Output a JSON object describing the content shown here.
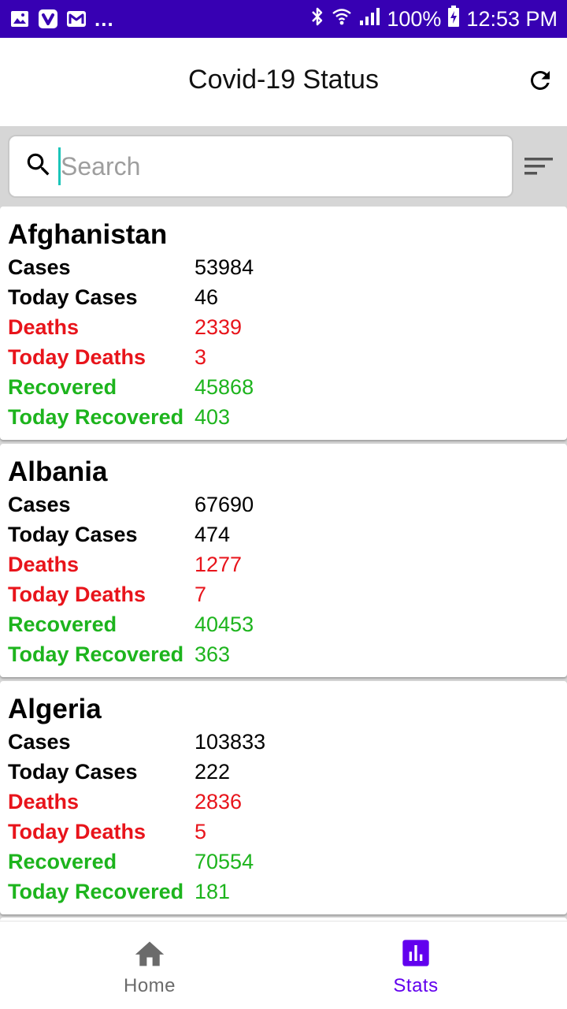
{
  "status_bar": {
    "battery": "100%",
    "time": "12:53 PM",
    "overflow": "..."
  },
  "app_bar": {
    "title": "Covid-19 Status",
    "refresh_icon": "refresh-icon"
  },
  "search": {
    "placeholder": "Search",
    "value": "",
    "sort_icon": "sort-icon"
  },
  "countries": [
    {
      "name": "Afghanistan",
      "stats": [
        {
          "label": "Cases",
          "value": "53984",
          "tone": "black"
        },
        {
          "label": "Today Cases",
          "value": "46",
          "tone": "black"
        },
        {
          "label": "Deaths",
          "value": "2339",
          "tone": "red"
        },
        {
          "label": "Today Deaths",
          "value": "3",
          "tone": "red"
        },
        {
          "label": "Recovered",
          "value": "45868",
          "tone": "green"
        },
        {
          "label": "Today Recovered",
          "value": "403",
          "tone": "green"
        }
      ]
    },
    {
      "name": "Albania",
      "stats": [
        {
          "label": "Cases",
          "value": "67690",
          "tone": "black"
        },
        {
          "label": "Today Cases",
          "value": "474",
          "tone": "black"
        },
        {
          "label": "Deaths",
          "value": "1277",
          "tone": "red"
        },
        {
          "label": "Today Deaths",
          "value": "7",
          "tone": "red"
        },
        {
          "label": "Recovered",
          "value": "40453",
          "tone": "green"
        },
        {
          "label": "Today Recovered",
          "value": "363",
          "tone": "green"
        }
      ]
    },
    {
      "name": "Algeria",
      "stats": [
        {
          "label": "Cases",
          "value": "103833",
          "tone": "black"
        },
        {
          "label": "Today Cases",
          "value": "222",
          "tone": "black"
        },
        {
          "label": "Deaths",
          "value": "2836",
          "tone": "red"
        },
        {
          "label": "Today Deaths",
          "value": "5",
          "tone": "red"
        },
        {
          "label": "Recovered",
          "value": "70554",
          "tone": "green"
        },
        {
          "label": "Today Recovered",
          "value": "181",
          "tone": "green"
        }
      ]
    }
  ],
  "bottom_nav": {
    "home_label": "Home",
    "stats_label": "Stats",
    "active": "Stats"
  },
  "colors": {
    "status_bar": "#3700b3",
    "accent": "#6200ee",
    "deaths": "#e8141b",
    "recovered": "#1db41d",
    "cursor": "#1bc5b9"
  }
}
